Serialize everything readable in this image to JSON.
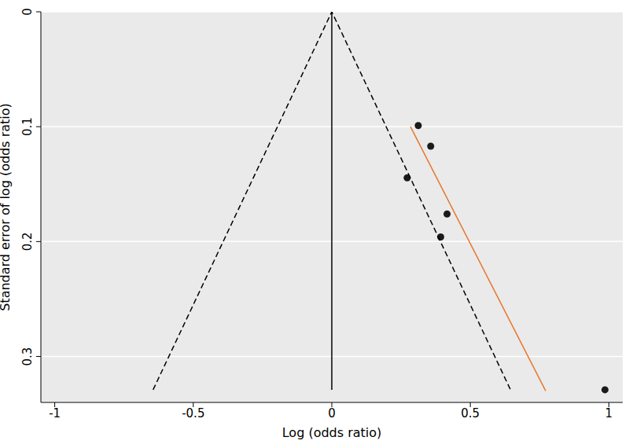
{
  "chart_data": {
    "type": "scatter",
    "x_label": "Log (odds ratio)",
    "y_label": "Standard error of log (odds ratio)",
    "xlim": [
      -1.05,
      1.05
    ],
    "ylim": [
      0.34,
      0
    ],
    "xticks": [
      -1,
      -0.5,
      0,
      0.5,
      1
    ],
    "yticks": [
      0,
      0.1,
      0.2,
      0.3
    ],
    "grid": true,
    "series": [
      {
        "type": "scatter",
        "marker": "circle",
        "color": "#1a1a1a",
        "x": [
          0.312,
          0.357,
          0.272,
          0.416,
          0.393,
          0.986
        ],
        "values": [
          0.099,
          0.117,
          0.1445,
          0.176,
          0.196,
          0.329
        ]
      },
      {
        "type": "line",
        "line_style": "dashed",
        "color": "#000000",
        "x": [
          -0.645,
          0,
          0.645
        ],
        "values": [
          0.329,
          0,
          0.329
        ]
      },
      {
        "type": "line",
        "line_style": "solid",
        "color": "#000000",
        "x": [
          0,
          0
        ],
        "values": [
          0,
          0.329
        ]
      },
      {
        "type": "line",
        "line_style": "solid",
        "color": "#e8772e",
        "x": [
          0.284,
          0.772
        ],
        "values": [
          0.1,
          0.33
        ]
      }
    ]
  }
}
